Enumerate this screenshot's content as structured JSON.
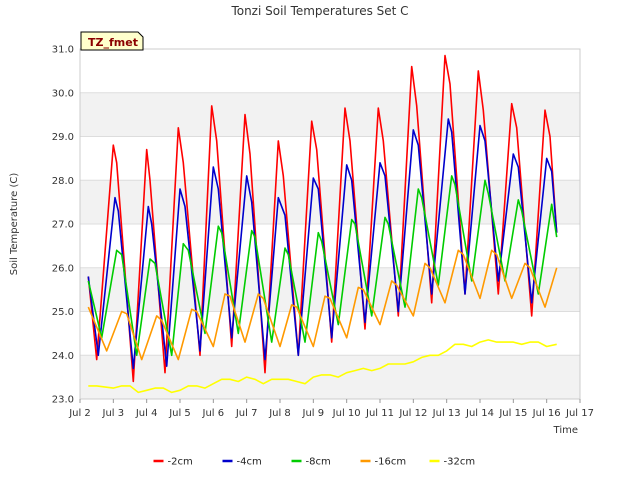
{
  "chart_data": {
    "type": "line",
    "title": "Tonzi Soil Temperatures Set C",
    "xlabel": "Time",
    "ylabel": "Soil Temperature (C)",
    "badge": "TZ_fmet",
    "xlim": [
      2.0,
      17.0
    ],
    "ylim": [
      23.0,
      31.0
    ],
    "x_ticks": [
      2,
      3,
      4,
      5,
      6,
      7,
      8,
      9,
      10,
      11,
      12,
      13,
      14,
      15,
      16,
      17
    ],
    "x_tick_labels": [
      "Jul 2",
      "Jul 3",
      "Jul 4",
      "Jul 5",
      "Jul 6",
      "Jul 7",
      "Jul 8",
      "Jul 9",
      "Jul 10",
      "Jul 11",
      "Jul 12",
      "Jul 13",
      "Jul 14",
      "Jul 15",
      "Jul 16",
      "Jul 17"
    ],
    "y_ticks": [
      23,
      24,
      25,
      26,
      27,
      28,
      29,
      30,
      31
    ],
    "y_tick_labels": [
      "23.0",
      "24.0",
      "25.0",
      "26.0",
      "27.0",
      "28.0",
      "29.0",
      "30.0",
      "31.0"
    ],
    "grid": true,
    "background_bands": true,
    "legend_position": "bottom",
    "series": [
      {
        "name": "-2cm",
        "color": "#ff0000",
        "x": [
          2.25,
          2.5,
          3.0,
          3.1,
          3.6,
          4.0,
          4.1,
          4.55,
          4.95,
          5.1,
          5.6,
          5.95,
          6.1,
          6.55,
          6.95,
          7.1,
          7.55,
          7.95,
          8.1,
          8.55,
          8.95,
          9.1,
          9.55,
          9.95,
          10.1,
          10.55,
          10.95,
          11.1,
          11.55,
          11.95,
          12.1,
          12.55,
          12.95,
          13.1,
          13.55,
          13.95,
          14.1,
          14.55,
          14.95,
          15.1,
          15.55,
          15.95,
          16.1,
          16.3
        ],
        "y": [
          25.8,
          23.9,
          28.8,
          28.4,
          23.4,
          28.7,
          28.0,
          23.6,
          29.2,
          28.4,
          24.0,
          29.7,
          28.9,
          24.2,
          29.5,
          28.6,
          23.6,
          28.9,
          28.1,
          24.0,
          29.35,
          28.7,
          24.3,
          29.65,
          28.9,
          24.6,
          29.65,
          28.9,
          24.9,
          30.6,
          29.7,
          25.2,
          30.85,
          30.2,
          25.4,
          30.5,
          29.6,
          25.4,
          29.75,
          29.2,
          24.9,
          29.6,
          29.0,
          26.8
        ]
      },
      {
        "name": "-4cm",
        "color": "#0000cc",
        "x": [
          2.25,
          2.55,
          3.05,
          3.15,
          3.6,
          4.05,
          4.15,
          4.6,
          5.0,
          5.15,
          5.6,
          6.0,
          6.15,
          6.55,
          7.0,
          7.15,
          7.55,
          7.95,
          8.15,
          8.55,
          9.0,
          9.15,
          9.55,
          10.0,
          10.15,
          10.55,
          11.0,
          11.15,
          11.55,
          12.0,
          12.15,
          12.55,
          13.05,
          13.15,
          13.55,
          14.0,
          14.15,
          14.55,
          15.0,
          15.15,
          15.55,
          16.0,
          16.15,
          16.3
        ],
        "y": [
          25.8,
          24.0,
          27.6,
          27.3,
          23.7,
          27.4,
          27.0,
          23.75,
          27.8,
          27.4,
          24.1,
          28.3,
          27.8,
          24.4,
          28.1,
          27.5,
          23.9,
          27.6,
          27.2,
          24.0,
          28.05,
          27.8,
          24.4,
          28.35,
          28.0,
          24.75,
          28.4,
          28.1,
          25.0,
          29.15,
          28.8,
          25.4,
          29.4,
          29.1,
          25.4,
          29.25,
          28.9,
          25.7,
          28.6,
          28.3,
          25.2,
          28.5,
          28.2,
          26.8
        ]
      },
      {
        "name": "-8cm",
        "color": "#00cc00",
        "x": [
          2.25,
          2.65,
          3.1,
          3.25,
          3.7,
          4.1,
          4.25,
          4.75,
          5.1,
          5.25,
          5.75,
          6.15,
          6.25,
          6.75,
          7.15,
          7.25,
          7.75,
          8.15,
          8.25,
          8.75,
          9.15,
          9.25,
          9.75,
          10.15,
          10.25,
          10.75,
          11.15,
          11.25,
          11.75,
          12.15,
          12.25,
          12.75,
          13.15,
          13.25,
          13.75,
          14.15,
          14.25,
          14.75,
          15.15,
          15.25,
          15.75,
          16.15,
          16.3
        ],
        "y": [
          25.7,
          24.4,
          26.4,
          26.3,
          24.0,
          26.2,
          26.1,
          24.0,
          26.55,
          26.4,
          24.5,
          26.95,
          26.8,
          24.5,
          26.85,
          26.7,
          24.3,
          26.45,
          26.3,
          24.3,
          26.8,
          26.6,
          24.7,
          27.1,
          27.0,
          24.9,
          27.15,
          27.0,
          25.1,
          27.8,
          27.6,
          25.6,
          28.1,
          27.9,
          25.7,
          28.0,
          27.7,
          25.7,
          27.55,
          27.3,
          25.4,
          27.45,
          26.7
        ]
      },
      {
        "name": "-16cm",
        "color": "#ff9900",
        "x": [
          2.25,
          2.8,
          3.25,
          3.4,
          3.85,
          4.3,
          4.45,
          4.95,
          5.35,
          5.5,
          6.0,
          6.35,
          6.5,
          6.95,
          7.35,
          7.5,
          8.0,
          8.35,
          8.5,
          9.0,
          9.35,
          9.5,
          10.0,
          10.35,
          10.5,
          11.0,
          11.35,
          11.5,
          12.0,
          12.35,
          12.5,
          12.95,
          13.35,
          13.5,
          14.0,
          14.35,
          14.5,
          14.95,
          15.35,
          15.5,
          15.95,
          16.3
        ],
        "y": [
          25.1,
          24.1,
          25.0,
          24.95,
          23.9,
          24.9,
          24.8,
          23.9,
          25.05,
          25.0,
          24.2,
          25.4,
          25.35,
          24.3,
          25.4,
          25.3,
          24.2,
          25.15,
          25.1,
          24.2,
          25.35,
          25.3,
          24.4,
          25.55,
          25.5,
          24.7,
          25.7,
          25.6,
          24.9,
          26.1,
          26.0,
          25.2,
          26.4,
          26.3,
          25.3,
          26.4,
          26.3,
          25.3,
          26.1,
          26.0,
          25.1,
          26.0
        ]
      },
      {
        "name": "-32cm",
        "color": "#ffff00",
        "x": [
          2.25,
          2.5,
          3.0,
          3.25,
          3.5,
          3.75,
          4.0,
          4.25,
          4.5,
          4.75,
          5.0,
          5.25,
          5.5,
          5.75,
          6.0,
          6.25,
          6.5,
          6.75,
          7.0,
          7.25,
          7.5,
          7.75,
          8.0,
          8.25,
          8.5,
          8.75,
          9.0,
          9.25,
          9.5,
          9.75,
          10.0,
          10.25,
          10.5,
          10.75,
          11.0,
          11.25,
          11.5,
          11.75,
          12.0,
          12.25,
          12.5,
          12.75,
          13.0,
          13.25,
          13.5,
          13.75,
          14.0,
          14.25,
          14.5,
          14.75,
          15.0,
          15.25,
          15.5,
          15.75,
          16.0,
          16.3
        ],
        "y": [
          23.3,
          23.3,
          23.25,
          23.3,
          23.3,
          23.15,
          23.2,
          23.25,
          23.25,
          23.15,
          23.2,
          23.3,
          23.3,
          23.25,
          23.35,
          23.45,
          23.45,
          23.4,
          23.5,
          23.45,
          23.35,
          23.45,
          23.45,
          23.45,
          23.4,
          23.35,
          23.5,
          23.55,
          23.55,
          23.5,
          23.6,
          23.65,
          23.7,
          23.65,
          23.7,
          23.8,
          23.8,
          23.8,
          23.85,
          23.95,
          24.0,
          24.0,
          24.1,
          24.25,
          24.25,
          24.2,
          24.3,
          24.35,
          24.3,
          24.3,
          24.3,
          24.25,
          24.3,
          24.3,
          24.2,
          24.25
        ]
      }
    ]
  }
}
